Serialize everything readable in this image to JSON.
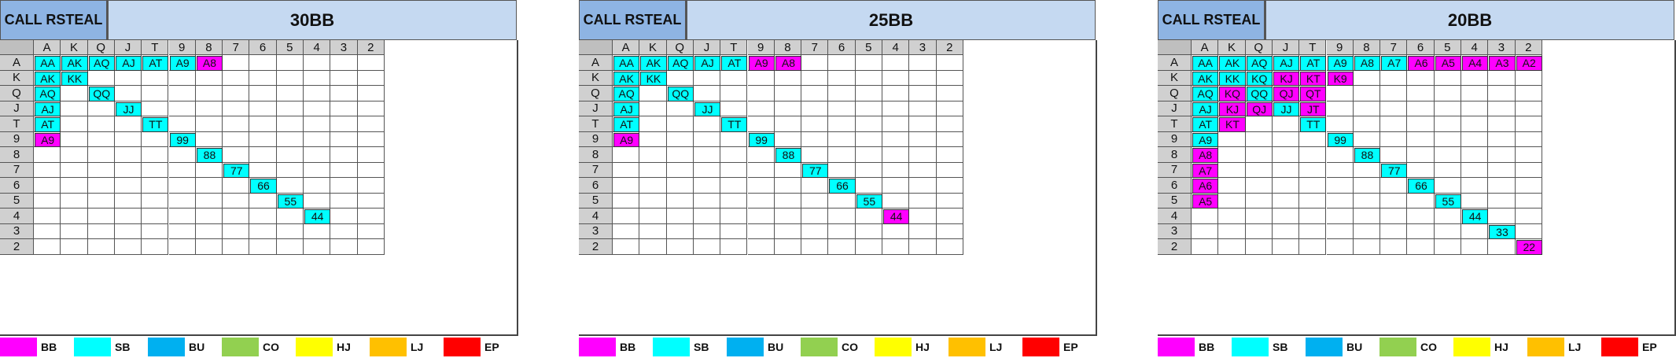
{
  "ranks": [
    "A",
    "K",
    "Q",
    "J",
    "T",
    "9",
    "8",
    "7",
    "6",
    "5",
    "4",
    "3",
    "2"
  ],
  "colors": {
    "BB": "#ff00ff",
    "SB": "#00ffff",
    "BU": "#00b0f0",
    "CO": "#92d050",
    "HJ": "#ffff00",
    "LJ": "#ffc000",
    "EP": "#ff0000"
  },
  "legend": [
    {
      "key": "BB",
      "label": "BB"
    },
    {
      "key": "SB",
      "label": "SB"
    },
    {
      "key": "BU",
      "label": "BU"
    },
    {
      "key": "CO",
      "label": "CO"
    },
    {
      "key": "HJ",
      "label": "HJ"
    },
    {
      "key": "LJ",
      "label": "LJ"
    },
    {
      "key": "EP",
      "label": "EP"
    }
  ],
  "chart_data": [
    {
      "type": "heatmap",
      "title": "CALL RSTEAL",
      "stack": "30BB",
      "hands": [
        {
          "r": 0,
          "c": 0,
          "label": "AA",
          "pos": "SB"
        },
        {
          "r": 0,
          "c": 1,
          "label": "AK",
          "pos": "SB"
        },
        {
          "r": 0,
          "c": 2,
          "label": "AQ",
          "pos": "SB"
        },
        {
          "r": 0,
          "c": 3,
          "label": "AJ",
          "pos": "SB"
        },
        {
          "r": 0,
          "c": 4,
          "label": "AT",
          "pos": "SB"
        },
        {
          "r": 0,
          "c": 5,
          "label": "A9",
          "pos": "SB"
        },
        {
          "r": 0,
          "c": 6,
          "label": "A8",
          "pos": "BB"
        },
        {
          "r": 1,
          "c": 0,
          "label": "AK",
          "pos": "SB"
        },
        {
          "r": 1,
          "c": 1,
          "label": "KK",
          "pos": "SB"
        },
        {
          "r": 2,
          "c": 0,
          "label": "AQ",
          "pos": "SB"
        },
        {
          "r": 2,
          "c": 2,
          "label": "QQ",
          "pos": "SB"
        },
        {
          "r": 3,
          "c": 0,
          "label": "AJ",
          "pos": "SB"
        },
        {
          "r": 3,
          "c": 3,
          "label": "JJ",
          "pos": "SB"
        },
        {
          "r": 4,
          "c": 0,
          "label": "AT",
          "pos": "SB"
        },
        {
          "r": 4,
          "c": 4,
          "label": "TT",
          "pos": "SB"
        },
        {
          "r": 5,
          "c": 0,
          "label": "A9",
          "pos": "BB"
        },
        {
          "r": 5,
          "c": 5,
          "label": "99",
          "pos": "SB"
        },
        {
          "r": 6,
          "c": 6,
          "label": "88",
          "pos": "SB"
        },
        {
          "r": 7,
          "c": 7,
          "label": "77",
          "pos": "SB"
        },
        {
          "r": 8,
          "c": 8,
          "label": "66",
          "pos": "SB"
        },
        {
          "r": 9,
          "c": 9,
          "label": "55",
          "pos": "SB"
        },
        {
          "r": 10,
          "c": 10,
          "label": "44",
          "pos": "SB"
        }
      ]
    },
    {
      "type": "heatmap",
      "title": "CALL RSTEAL",
      "stack": "25BB",
      "hands": [
        {
          "r": 0,
          "c": 0,
          "label": "AA",
          "pos": "SB"
        },
        {
          "r": 0,
          "c": 1,
          "label": "AK",
          "pos": "SB"
        },
        {
          "r": 0,
          "c": 2,
          "label": "AQ",
          "pos": "SB"
        },
        {
          "r": 0,
          "c": 3,
          "label": "AJ",
          "pos": "SB"
        },
        {
          "r": 0,
          "c": 4,
          "label": "AT",
          "pos": "SB"
        },
        {
          "r": 0,
          "c": 5,
          "label": "A9",
          "pos": "BB"
        },
        {
          "r": 0,
          "c": 6,
          "label": "A8",
          "pos": "BB"
        },
        {
          "r": 1,
          "c": 0,
          "label": "AK",
          "pos": "SB"
        },
        {
          "r": 1,
          "c": 1,
          "label": "KK",
          "pos": "SB"
        },
        {
          "r": 2,
          "c": 0,
          "label": "AQ",
          "pos": "SB"
        },
        {
          "r": 2,
          "c": 2,
          "label": "QQ",
          "pos": "SB"
        },
        {
          "r": 3,
          "c": 0,
          "label": "AJ",
          "pos": "SB"
        },
        {
          "r": 3,
          "c": 3,
          "label": "JJ",
          "pos": "SB"
        },
        {
          "r": 4,
          "c": 0,
          "label": "AT",
          "pos": "SB"
        },
        {
          "r": 4,
          "c": 4,
          "label": "TT",
          "pos": "SB"
        },
        {
          "r": 5,
          "c": 0,
          "label": "A9",
          "pos": "BB"
        },
        {
          "r": 5,
          "c": 5,
          "label": "99",
          "pos": "SB"
        },
        {
          "r": 6,
          "c": 6,
          "label": "88",
          "pos": "SB"
        },
        {
          "r": 7,
          "c": 7,
          "label": "77",
          "pos": "SB"
        },
        {
          "r": 8,
          "c": 8,
          "label": "66",
          "pos": "SB"
        },
        {
          "r": 9,
          "c": 9,
          "label": "55",
          "pos": "SB"
        },
        {
          "r": 10,
          "c": 10,
          "label": "44",
          "pos": "BB"
        }
      ]
    },
    {
      "type": "heatmap",
      "title": "CALL RSTEAL",
      "stack": "20BB",
      "hands": [
        {
          "r": 0,
          "c": 0,
          "label": "AA",
          "pos": "SB"
        },
        {
          "r": 0,
          "c": 1,
          "label": "AK",
          "pos": "SB"
        },
        {
          "r": 0,
          "c": 2,
          "label": "AQ",
          "pos": "SB"
        },
        {
          "r": 0,
          "c": 3,
          "label": "AJ",
          "pos": "SB"
        },
        {
          "r": 0,
          "c": 4,
          "label": "AT",
          "pos": "SB"
        },
        {
          "r": 0,
          "c": 5,
          "label": "A9",
          "pos": "SB"
        },
        {
          "r": 0,
          "c": 6,
          "label": "A8",
          "pos": "SB"
        },
        {
          "r": 0,
          "c": 7,
          "label": "A7",
          "pos": "SB"
        },
        {
          "r": 0,
          "c": 8,
          "label": "A6",
          "pos": "BB"
        },
        {
          "r": 0,
          "c": 9,
          "label": "A5",
          "pos": "BB"
        },
        {
          "r": 0,
          "c": 10,
          "label": "A4",
          "pos": "BB"
        },
        {
          "r": 0,
          "c": 11,
          "label": "A3",
          "pos": "BB"
        },
        {
          "r": 0,
          "c": 12,
          "label": "A2",
          "pos": "BB"
        },
        {
          "r": 1,
          "c": 0,
          "label": "AK",
          "pos": "SB"
        },
        {
          "r": 1,
          "c": 1,
          "label": "KK",
          "pos": "SB"
        },
        {
          "r": 1,
          "c": 2,
          "label": "KQ",
          "pos": "SB"
        },
        {
          "r": 1,
          "c": 3,
          "label": "KJ",
          "pos": "BB"
        },
        {
          "r": 1,
          "c": 4,
          "label": "KT",
          "pos": "BB"
        },
        {
          "r": 1,
          "c": 5,
          "label": "K9",
          "pos": "BB"
        },
        {
          "r": 2,
          "c": 0,
          "label": "AQ",
          "pos": "SB"
        },
        {
          "r": 2,
          "c": 1,
          "label": "KQ",
          "pos": "BB"
        },
        {
          "r": 2,
          "c": 2,
          "label": "QQ",
          "pos": "SB"
        },
        {
          "r": 2,
          "c": 3,
          "label": "QJ",
          "pos": "BB"
        },
        {
          "r": 2,
          "c": 4,
          "label": "QT",
          "pos": "BB"
        },
        {
          "r": 3,
          "c": 0,
          "label": "AJ",
          "pos": "SB"
        },
        {
          "r": 3,
          "c": 1,
          "label": "KJ",
          "pos": "BB"
        },
        {
          "r": 3,
          "c": 2,
          "label": "QJ",
          "pos": "BB"
        },
        {
          "r": 3,
          "c": 3,
          "label": "JJ",
          "pos": "SB"
        },
        {
          "r": 3,
          "c": 4,
          "label": "JT",
          "pos": "BB"
        },
        {
          "r": 4,
          "c": 0,
          "label": "AT",
          "pos": "SB"
        },
        {
          "r": 4,
          "c": 1,
          "label": "KT",
          "pos": "BB"
        },
        {
          "r": 4,
          "c": 4,
          "label": "TT",
          "pos": "SB"
        },
        {
          "r": 5,
          "c": 0,
          "label": "A9",
          "pos": "SB"
        },
        {
          "r": 5,
          "c": 5,
          "label": "99",
          "pos": "SB"
        },
        {
          "r": 6,
          "c": 0,
          "label": "A8",
          "pos": "BB"
        },
        {
          "r": 6,
          "c": 6,
          "label": "88",
          "pos": "SB"
        },
        {
          "r": 7,
          "c": 0,
          "label": "A7",
          "pos": "BB"
        },
        {
          "r": 7,
          "c": 7,
          "label": "77",
          "pos": "SB"
        },
        {
          "r": 8,
          "c": 0,
          "label": "A6",
          "pos": "BB"
        },
        {
          "r": 8,
          "c": 8,
          "label": "66",
          "pos": "SB"
        },
        {
          "r": 9,
          "c": 0,
          "label": "A5",
          "pos": "BB"
        },
        {
          "r": 9,
          "c": 9,
          "label": "55",
          "pos": "SB"
        },
        {
          "r": 10,
          "c": 10,
          "label": "44",
          "pos": "SB"
        },
        {
          "r": 11,
          "c": 11,
          "label": "33",
          "pos": "SB"
        },
        {
          "r": 12,
          "c": 12,
          "label": "22",
          "pos": "BB"
        }
      ]
    }
  ]
}
